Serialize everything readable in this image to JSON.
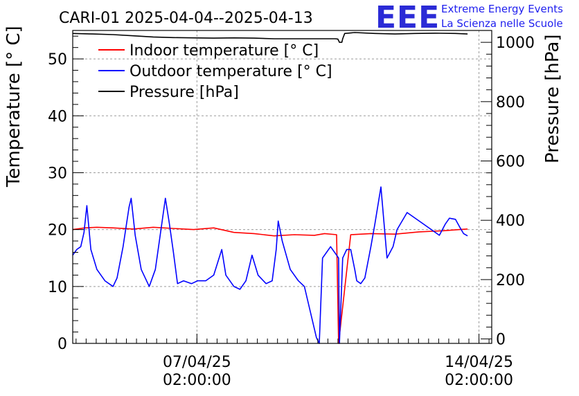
{
  "title": "CARI-01 2025-04-04--2025-04-13",
  "logo": {
    "mark": "EEE",
    "line1": "Extreme Energy Events",
    "line2": "La Scienza nelle Scuole"
  },
  "chart_data": {
    "type": "line",
    "x_unit": "days since 2025-04-04 00:00",
    "xlim": [
      0,
      10.4
    ],
    "x_ticks": [
      {
        "x": 3.083,
        "date": "07/04/25",
        "time": "02:00:00"
      },
      {
        "x": 10.083,
        "date": "14/04/25",
        "time": "02:00:00"
      }
    ],
    "ylabel": "Temperature [° C]",
    "ylim": [
      0,
      55
    ],
    "y_ticks": [
      "0",
      "10",
      "20",
      "30",
      "40",
      "50"
    ],
    "y2label": "Pressure [hPa]",
    "y2lim": [
      -15,
      1040
    ],
    "y2_ticks": [
      "0",
      "200",
      "400",
      "600",
      "800",
      "1000"
    ],
    "grid": true,
    "legend_position": "top-left",
    "series": [
      {
        "name": "Indoor temperature [° C]",
        "color": "#ff0000",
        "axis": "left",
        "x": [
          0,
          0.3,
          0.6,
          1.0,
          1.5,
          2.0,
          2.5,
          3.0,
          3.5,
          4.0,
          4.5,
          5.0,
          5.5,
          6.0,
          6.25,
          6.55,
          6.6,
          6.9,
          7.4,
          8.0,
          8.6,
          9.2,
          9.6,
          9.8
        ],
        "values": [
          20.0,
          20.3,
          20.4,
          20.3,
          20.1,
          20.4,
          20.2,
          20.0,
          20.3,
          19.5,
          19.3,
          18.9,
          19.1,
          19.0,
          19.3,
          19.1,
          0.0,
          19.1,
          19.3,
          19.2,
          19.6,
          19.8,
          20.0,
          20.1
        ]
      },
      {
        "name": "Outdoor temperature [° C]",
        "color": "#0000ff",
        "axis": "left",
        "x": [
          0,
          0.1,
          0.2,
          0.28,
          0.35,
          0.45,
          0.6,
          0.8,
          1.0,
          1.1,
          1.25,
          1.4,
          1.45,
          1.55,
          1.7,
          1.9,
          2.05,
          2.15,
          2.3,
          2.4,
          2.5,
          2.6,
          2.75,
          2.95,
          3.1,
          3.3,
          3.5,
          3.7,
          3.8,
          3.9,
          4.0,
          4.15,
          4.3,
          4.45,
          4.6,
          4.8,
          4.95,
          5.05,
          5.1,
          5.2,
          5.4,
          5.6,
          5.75,
          5.85,
          5.95,
          6.05,
          6.12,
          6.2,
          6.3,
          6.4,
          6.6,
          6.62,
          6.7,
          6.8,
          6.9,
          7.0,
          7.05,
          7.15,
          7.25,
          7.4,
          7.5,
          7.65,
          7.8,
          7.95,
          8.05,
          8.3,
          8.7,
          9.1,
          9.25,
          9.35,
          9.5,
          9.6,
          9.7,
          9.8
        ],
        "values": [
          15.5,
          16.5,
          17.0,
          19.5,
          24.2,
          16.5,
          13.0,
          11.0,
          10.0,
          11.5,
          17.0,
          24.0,
          25.5,
          19.0,
          13.0,
          10.0,
          13.0,
          18.0,
          25.5,
          21.0,
          16.0,
          10.5,
          11.0,
          10.5,
          11.0,
          11.0,
          12.0,
          16.5,
          12.0,
          11.0,
          10.0,
          9.5,
          11.0,
          15.5,
          12.0,
          10.5,
          11.0,
          16.5,
          21.5,
          18.0,
          13.0,
          11.0,
          10.0,
          7.0,
          4.0,
          1.0,
          0.0,
          15.0,
          16.0,
          17.0,
          15.0,
          0.0,
          15.0,
          16.5,
          16.5,
          13.0,
          11.0,
          10.5,
          11.5,
          17.0,
          21.0,
          27.5,
          15.0,
          17.0,
          20.0,
          23.0,
          21.0,
          19.0,
          21.0,
          22.0,
          21.8,
          20.5,
          19.3,
          18.9
        ]
      },
      {
        "name": "Pressure [hPa]",
        "color": "#000000",
        "axis": "right",
        "x": [
          0,
          0.5,
          1.0,
          1.5,
          2.0,
          2.5,
          3.0,
          3.5,
          4.0,
          4.5,
          5.0,
          5.5,
          6.0,
          6.1,
          6.2,
          6.3,
          6.4,
          6.45,
          6.52,
          6.58,
          6.62,
          6.68,
          6.7,
          6.75,
          7.0,
          7.5,
          8.0,
          8.5,
          9.0,
          9.5,
          9.8
        ],
        "values": [
          1030,
          1028,
          1026,
          1022,
          1018,
          1016,
          1015,
          1014,
          1015,
          1014,
          1012,
          1012,
          1012,
          1012,
          1012,
          1012,
          1012,
          1012,
          1012,
          1011,
          1000,
          1000,
          1012,
          1030,
          1033,
          1030,
          1028,
          1030,
          1031,
          1030,
          1028
        ]
      }
    ]
  }
}
